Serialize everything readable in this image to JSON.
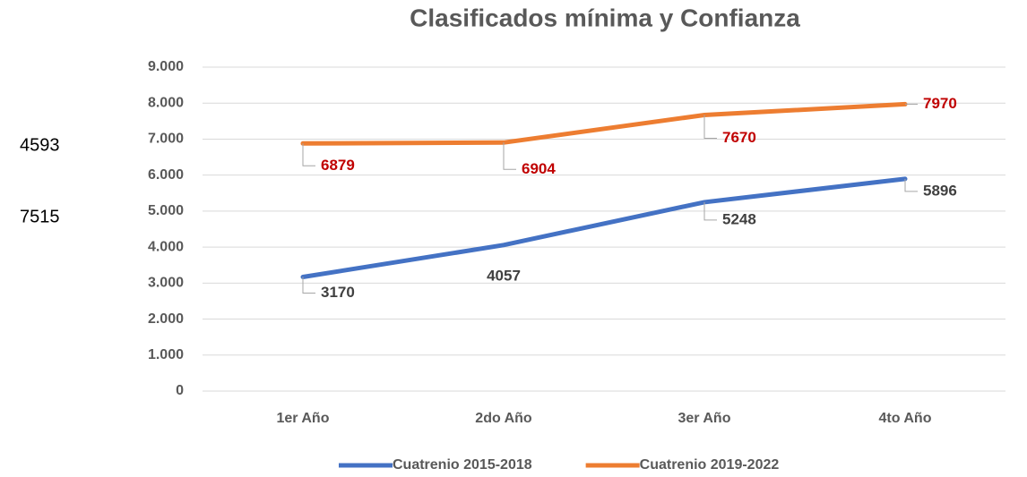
{
  "chart_data": {
    "type": "line",
    "title": "Clasificados mínima y Confianza",
    "categories": [
      "1er Año",
      "2do Año",
      "3er Año",
      "4to Año"
    ],
    "series": [
      {
        "name": "Cuatrenio 2015-2018",
        "color": "#4472c4",
        "label_color": "#404040",
        "values": [
          3170,
          4057,
          5248,
          5896
        ]
      },
      {
        "name": "Cuatrenio 2019-2022",
        "color": "#ed7d31",
        "label_color": "#c00000",
        "values": [
          6879,
          6904,
          7670,
          7970
        ]
      }
    ],
    "ylim": [
      0,
      9000
    ],
    "yticks": [
      0,
      {
        "value": 1000,
        "label": "1.000"
      },
      {
        "value": 2000,
        "label": "2.000"
      },
      {
        "value": 3000,
        "label": "3.000"
      },
      {
        "value": 4000,
        "label": "4.000"
      },
      {
        "value": 5000,
        "label": "5.000"
      },
      {
        "value": 6000,
        "label": "6.000"
      },
      {
        "value": 7000,
        "label": "7.000"
      },
      {
        "value": 8000,
        "label": "8.000"
      },
      {
        "value": 9000,
        "label": "9.000"
      }
    ],
    "grid": true,
    "legend": "bottom",
    "annotations": [
      4593,
      7515
    ]
  }
}
